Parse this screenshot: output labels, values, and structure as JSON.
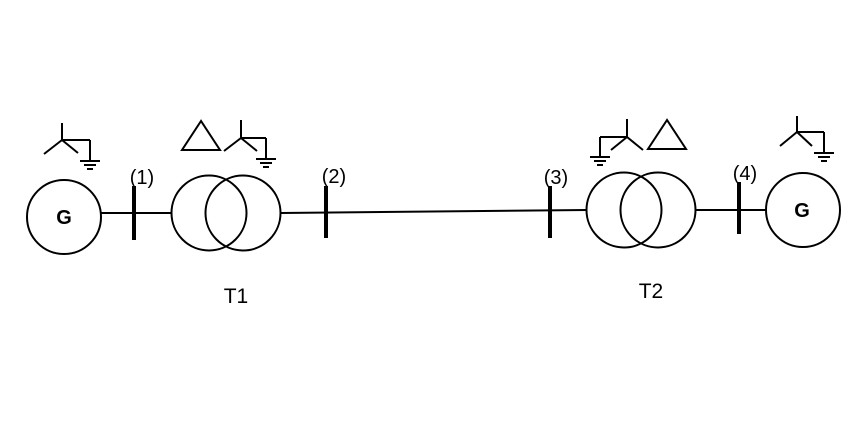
{
  "generators": [
    {
      "label": "G"
    },
    {
      "label": "G"
    }
  ],
  "buses": [
    {
      "label": "(1)"
    },
    {
      "label": "(2)"
    },
    {
      "label": "(3)"
    },
    {
      "label": "(4)"
    }
  ],
  "transformers": [
    {
      "label": "T1",
      "primary": "delta",
      "secondary": "grounded-wye"
    },
    {
      "label": "T2",
      "primary": "grounded-wye",
      "secondary": "delta"
    }
  ],
  "generator_connection": "grounded-wye"
}
